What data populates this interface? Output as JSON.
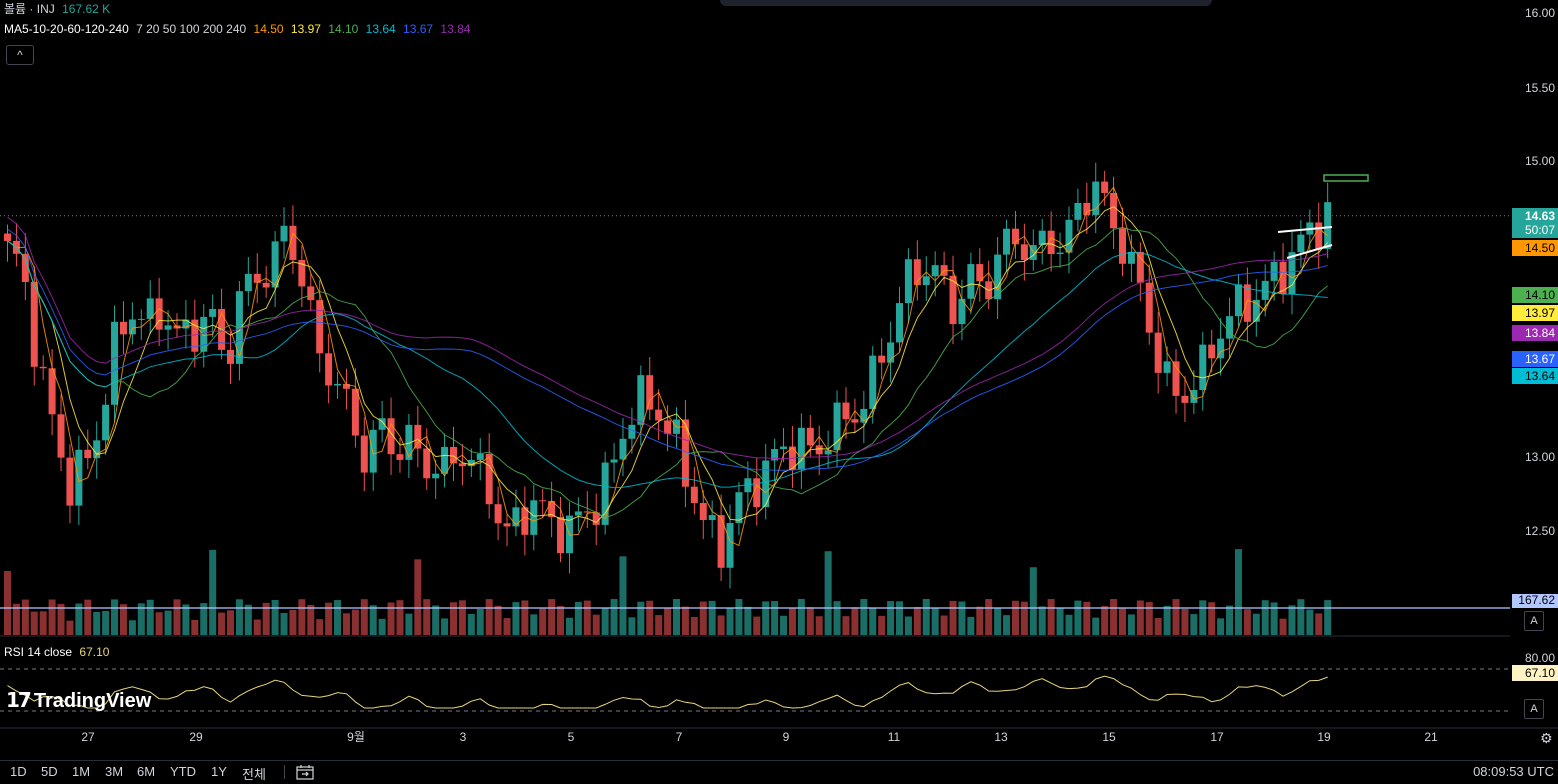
{
  "vol_legend": {
    "title": "볼륨 · INJ",
    "value": "167.62 K"
  },
  "ma_legend": {
    "name": "MA5-10-20-60-120-240",
    "params": "7 20 50 100 200 240",
    "values": [
      {
        "v": "14.50",
        "color": "#ff9800"
      },
      {
        "v": "13.97",
        "color": "#ffeb3b"
      },
      {
        "v": "14.10",
        "color": "#4caf50"
      },
      {
        "v": "13.64",
        "color": "#00bcd4"
      },
      {
        "v": "13.67",
        "color": "#2962ff"
      },
      {
        "v": "13.84",
        "color": "#9c27b0"
      }
    ]
  },
  "collapse_icon": "chevron-up-icon",
  "rsi_legend": {
    "name": "RSI 14 close",
    "value": "67.10"
  },
  "logo": "TradingView",
  "price_axis": {
    "ticks": [
      "16.00",
      "15.50",
      "15.00",
      "13.00",
      "12.50"
    ],
    "partial_tick": "13.50",
    "last_price": "14.63",
    "countdown": "50:07",
    "badges": [
      {
        "v": "14.50",
        "color": "#ff9800"
      },
      {
        "v": "14.10",
        "color": "#4caf50"
      },
      {
        "v": "13.97",
        "color": "#ffeb3b"
      },
      {
        "v": "13.84",
        "color": "#9c27b0"
      },
      {
        "v": "13.67",
        "color": "#2962ff"
      },
      {
        "v": "13.64",
        "color": "#00bcd4"
      }
    ],
    "volume_badge": "167.62"
  },
  "rsi_axis": {
    "upper": "80.00",
    "value": "67.10"
  },
  "time_axis": [
    "27",
    "29",
    "9월",
    "3",
    "5",
    "7",
    "9",
    "11",
    "13",
    "15",
    "17",
    "19",
    "21"
  ],
  "auto_label": "A",
  "range_buttons": [
    "1D",
    "5D",
    "1M",
    "3M",
    "6M",
    "YTD",
    "1Y",
    "전체"
  ],
  "clock": "08:09:53 UTC",
  "colors": {
    "up": "#26a69a",
    "down": "#ef5350",
    "vol_up": "#1b6e66",
    "vol_down": "#8b3030",
    "rsi": "#e8d67a"
  },
  "chart_data": {
    "type": "candlestick",
    "symbol": "INJ",
    "ylim": [
      12.2,
      16.05
    ],
    "candles_close": [
      14.4,
      14.25,
      13.6,
      13.2,
      12.8,
      12.95,
      13.25,
      13.8,
      14.0,
      13.9,
      14.0,
      13.8,
      13.85,
      14.0,
      13.6,
      14.1,
      14.2,
      14.3,
      14.55,
      14.2,
      13.7,
      13.55,
      13.3,
      13.0,
      13.2,
      13.05,
      13.1,
      12.95,
      12.9,
      13.05,
      12.95,
      12.8,
      12.45,
      12.6,
      12.7,
      12.55,
      12.5,
      12.6,
      12.7,
      12.95,
      13.3,
      13.4,
      13.3,
      13.1,
      12.8,
      12.5,
      12.4,
      12.7,
      12.8,
      12.95,
      13.05,
      13.1,
      13.0,
      13.2,
      13.25,
      13.35,
      13.6,
      13.9,
      14.2,
      14.3,
      14.2,
      14.0,
      14.2,
      14.15,
      14.4,
      14.5,
      14.35,
      14.5,
      14.4,
      14.7,
      14.85,
      14.6,
      14.4,
      14.1,
      13.7,
      13.4,
      13.45,
      13.6,
      13.85,
      14.0,
      14.05,
      14.15,
      14.25,
      14.4,
      14.55,
      14.63
    ]
  }
}
